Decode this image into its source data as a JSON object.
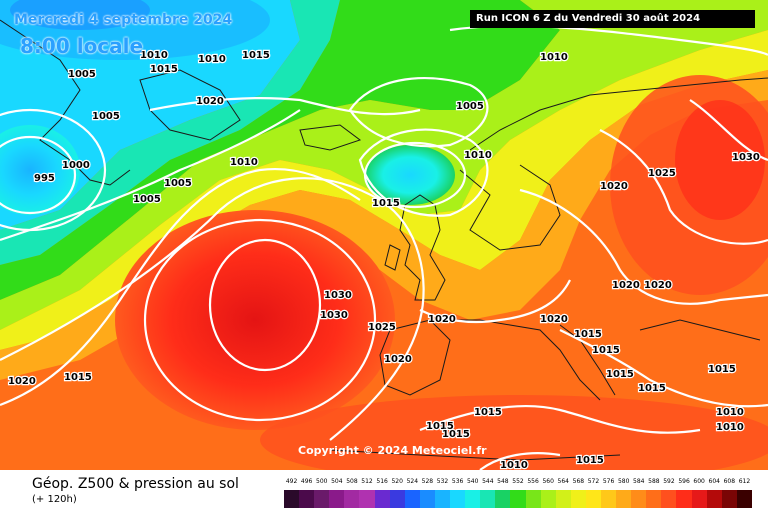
{
  "header": {
    "date": "Mercredi 4 septembre 2024",
    "time": "8:00 locale",
    "run": "Run ICON 6 Z du Vendredi 30 août 2024"
  },
  "copyright": "Copyright © 2024 Meteociel.fr",
  "legend": {
    "title": "Géop. Z500 & pression au sol",
    "subtitle": "(+ 120h)",
    "ticks": [
      "492",
      "496",
      "500",
      "504",
      "508",
      "512",
      "516",
      "520",
      "524",
      "528",
      "532",
      "536",
      "540",
      "544",
      "548",
      "552",
      "556",
      "560",
      "564",
      "568",
      "572",
      "576",
      "580",
      "584",
      "588",
      "592",
      "596",
      "600",
      "604",
      "608",
      "612"
    ],
    "colors": [
      "#2a0a2a",
      "#4b0a4b",
      "#6a1a6a",
      "#8a1a8a",
      "#a22aa2",
      "#b032b0",
      "#6a2ad0",
      "#3a3ae0",
      "#1a64ff",
      "#1a8cff",
      "#19b4ff",
      "#19d8ff",
      "#19f0e6",
      "#19e6b4",
      "#19d264",
      "#32dc19",
      "#78e619",
      "#aaf019",
      "#d2f019",
      "#f0f019",
      "#ffe619",
      "#ffc819",
      "#ffaa19",
      "#ff8c19",
      "#ff6e19",
      "#ff501e",
      "#ff2d19",
      "#e61919",
      "#b40a0a",
      "#7a0505",
      "#3a0000"
    ]
  },
  "labels": {
    "l995": "995",
    "l1000": "1000",
    "l1005": "1005",
    "l1010": "1010",
    "l1015": "1015",
    "l1020": "1020",
    "l1025": "1025",
    "l1030": "1030"
  }
}
